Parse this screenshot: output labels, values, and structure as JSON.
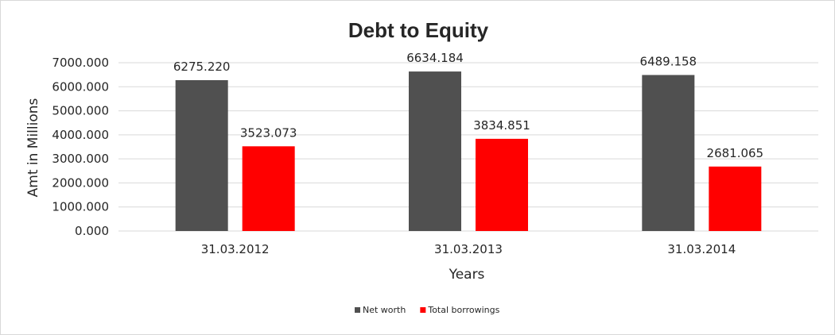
{
  "chart_data": {
    "type": "bar",
    "title": "Debt to Equity",
    "xlabel": "Years",
    "ylabel": "Amt in Millions",
    "categories": [
      "31.03.2012",
      "31.03.2013",
      "31.03.2014"
    ],
    "series": [
      {
        "name": "Net worth",
        "values": [
          6275.22,
          6634.184,
          6489.158
        ],
        "labels": [
          "6275.220",
          "6634.184",
          "6489.158"
        ],
        "color": "#505050"
      },
      {
        "name": "Total borrowings",
        "values": [
          3523.073,
          3834.851,
          2681.065
        ],
        "labels": [
          "3523.073",
          "3834.851",
          "2681.065"
        ],
        "color": "#ff0000"
      }
    ],
    "ylim": [
      0,
      7000
    ],
    "yticks": [
      "0.000",
      "1000.000",
      "2000.000",
      "3000.000",
      "4000.000",
      "5000.000",
      "6000.000",
      "7000.000"
    ],
    "grid": true,
    "legend_position": "bottom"
  }
}
